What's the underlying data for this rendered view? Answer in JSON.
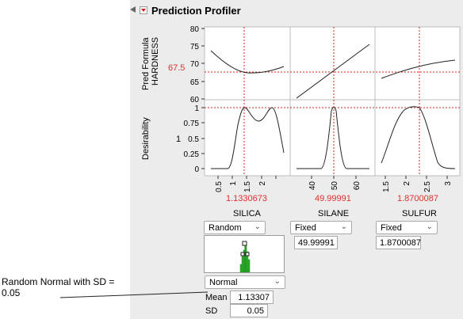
{
  "profiler": {
    "title": "Prediction Profiler",
    "y_response_label_1": "Pred Formula",
    "y_response_label_2": "HARDNESS",
    "response_value": "67.5",
    "desirability_label": "Desirability",
    "desirability_value": "1",
    "y_ticks_top": [
      "80",
      "75",
      "70",
      "65",
      "60"
    ],
    "y_ticks_bottom": [
      "1",
      "0.75",
      "0.5",
      "0.25",
      "0"
    ]
  },
  "factors": [
    {
      "name": "SILICA",
      "current": "1.1330673",
      "ticks": [
        "0.5",
        "1",
        "1.5",
        "2"
      ],
      "mode": "Random",
      "distribution": "Normal",
      "mean_label": "Mean",
      "mean": "1.13307",
      "sd_label": "SD",
      "sd": "0.05"
    },
    {
      "name": "SILANE",
      "current": "49.99991",
      "ticks": [
        "40",
        "50",
        "60"
      ],
      "mode": "Fixed",
      "value": "49.99991"
    },
    {
      "name": "SULFUR",
      "current": "1.8700087",
      "ticks": [
        "1.5",
        "2",
        "2.5",
        "3"
      ],
      "mode": "Fixed",
      "value": "1.8700087"
    }
  ],
  "annotation": "Random Normal with SD = 0.05",
  "colors": {
    "curve": "#222222",
    "crosshair": "#d42020",
    "histogram": "#2fb52f",
    "panel": "#ececec"
  }
}
